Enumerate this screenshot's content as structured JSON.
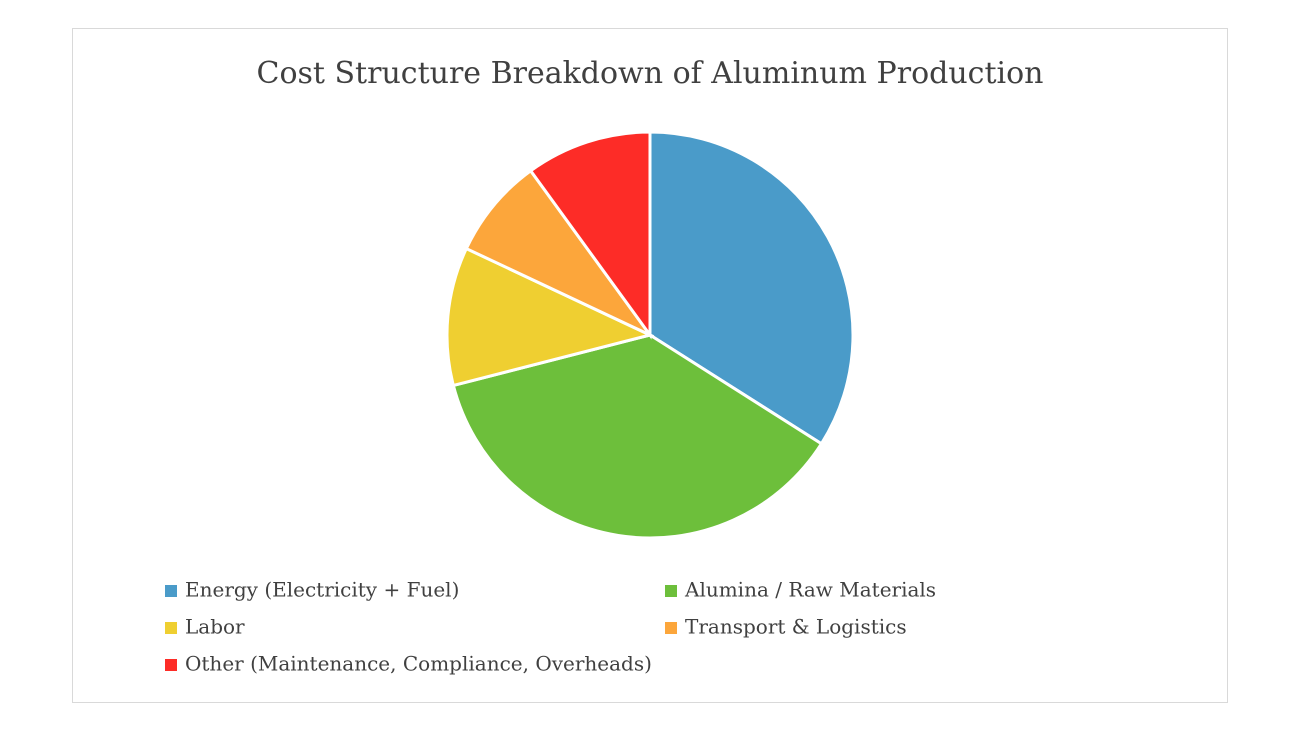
{
  "chart_data": {
    "type": "pie",
    "title": "Cost Structure Breakdown of Aluminum Production",
    "categories": [
      "Energy (Electricity + Fuel)",
      "Alumina / Raw Materials",
      "Labor",
      "Transport & Logistics",
      "Other (Maintenance, Compliance, Overheads)"
    ],
    "values": [
      34,
      37,
      11,
      8,
      10
    ],
    "colors": [
      "#4a9bc9",
      "#6dbf3b",
      "#efcf31",
      "#fca63b",
      "#fd2c27"
    ],
    "legend": "bottom"
  }
}
